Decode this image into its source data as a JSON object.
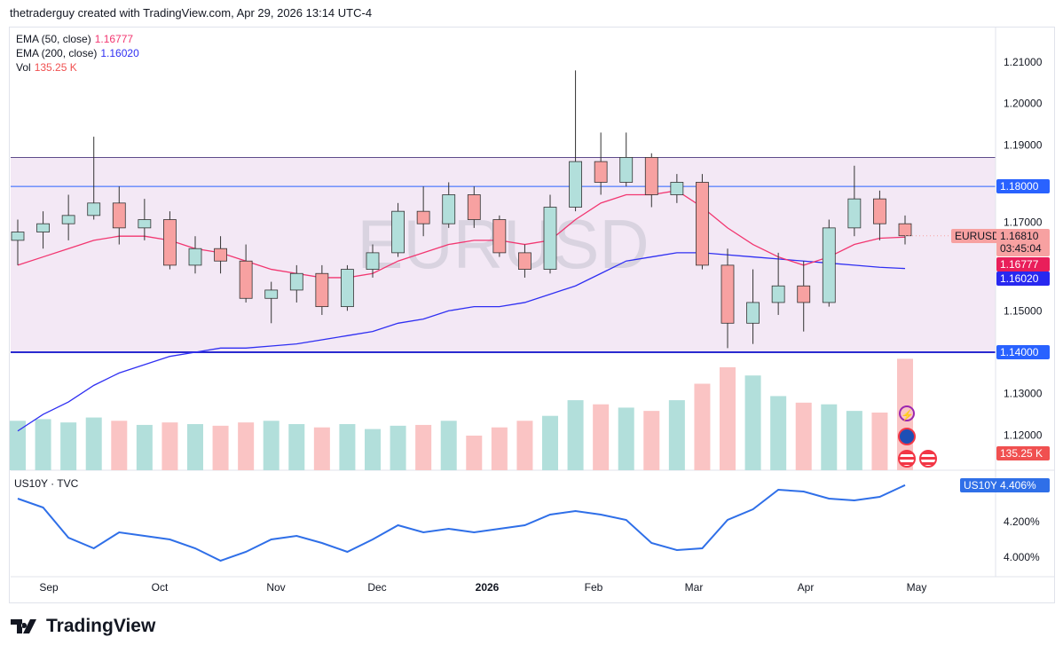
{
  "credit": "thetraderguy created with TradingView.com, Apr 29, 2026 13:14 UTC-4",
  "legend": {
    "ema50": {
      "label": "EMA (50, close)",
      "value": "1.16777",
      "color": "#f23670"
    },
    "ema200": {
      "label": "EMA (200, close)",
      "value": "1.16020",
      "color": "#2f2ff2"
    },
    "vol": {
      "label": "Vol",
      "value": "135.25 K",
      "color": "#f05050"
    }
  },
  "watermark": "EURUSD",
  "price_labels": {
    "symbol": "EURUSD",
    "last": "1.16810",
    "countdown": "03:45:04",
    "ema50": "1.16777",
    "ema200": "1.16020",
    "level_high": "1.18000",
    "level_low": "1.14000",
    "volume": "135.25 K"
  },
  "lower_pane": {
    "title": "US10Y · TVC",
    "symbol": "US10Y",
    "value": "4.406%"
  },
  "logo_text": "TradingView",
  "chart_data": {
    "type": "candlestick",
    "price_ticks": [
      "1.21000",
      "1.20000",
      "1.19000",
      "1.17000",
      "1.15000",
      "1.13000",
      "1.12000"
    ],
    "ylim": [
      1.1185,
      1.2165
    ],
    "x_ticks": [
      "Sep",
      "Oct",
      "Nov",
      "Dec",
      "2026",
      "Feb",
      "Mar",
      "Apr",
      "May"
    ],
    "horizontal_levels": [
      1.187,
      1.18,
      1.14
    ],
    "range_zone": [
      1.14,
      1.187
    ],
    "dates": [
      "2025-08-25",
      "2025-09-01",
      "2025-09-08",
      "2025-09-15",
      "2025-09-22",
      "2025-09-29",
      "2025-10-06",
      "2025-10-13",
      "2025-10-20",
      "2025-10-27",
      "2025-11-03",
      "2025-11-10",
      "2025-11-17",
      "2025-11-24",
      "2025-12-01",
      "2025-12-08",
      "2025-12-15",
      "2025-12-22",
      "2025-12-29",
      "2026-01-05",
      "2026-01-12",
      "2026-01-19",
      "2026-01-26",
      "2026-02-02",
      "2026-02-09",
      "2026-02-16",
      "2026-02-23",
      "2026-03-02",
      "2026-03-09",
      "2026-03-16",
      "2026-03-23",
      "2026-03-30",
      "2026-04-06",
      "2026-04-13",
      "2026-04-20",
      "2026-04-27"
    ],
    "open": [
      1.167,
      1.169,
      1.171,
      1.173,
      1.176,
      1.17,
      1.172,
      1.161,
      1.165,
      1.162,
      1.153,
      1.155,
      1.159,
      1.151,
      1.16,
      1.164,
      1.174,
      1.171,
      1.178,
      1.172,
      1.164,
      1.16,
      1.175,
      1.186,
      1.181,
      1.187,
      1.178,
      1.181,
      1.161,
      1.147,
      1.152,
      1.156,
      1.152,
      1.17,
      1.177,
      1.171
    ],
    "high": [
      1.172,
      1.174,
      1.178,
      1.192,
      1.18,
      1.177,
      1.174,
      1.168,
      1.168,
      1.166,
      1.157,
      1.161,
      1.161,
      1.161,
      1.166,
      1.176,
      1.18,
      1.181,
      1.18,
      1.173,
      1.166,
      1.178,
      1.208,
      1.193,
      1.193,
      1.188,
      1.183,
      1.183,
      1.165,
      1.16,
      1.164,
      1.162,
      1.172,
      1.185,
      1.179,
      1.173
    ],
    "low": [
      1.161,
      1.165,
      1.167,
      1.172,
      1.166,
      1.167,
      1.16,
      1.159,
      1.159,
      1.152,
      1.147,
      1.152,
      1.149,
      1.15,
      1.158,
      1.163,
      1.168,
      1.17,
      1.17,
      1.163,
      1.158,
      1.159,
      1.174,
      1.178,
      1.18,
      1.175,
      1.176,
      1.16,
      1.141,
      1.142,
      1.149,
      1.145,
      1.151,
      1.168,
      1.167,
      1.166
    ],
    "close": [
      1.169,
      1.171,
      1.173,
      1.176,
      1.17,
      1.172,
      1.161,
      1.165,
      1.162,
      1.153,
      1.155,
      1.159,
      1.151,
      1.16,
      1.164,
      1.174,
      1.171,
      1.178,
      1.172,
      1.164,
      1.16,
      1.175,
      1.186,
      1.181,
      1.187,
      1.178,
      1.181,
      1.161,
      1.147,
      1.152,
      1.156,
      1.152,
      1.17,
      1.177,
      1.171,
      1.1681
    ],
    "ema50": [
      1.161,
      1.163,
      1.165,
      1.167,
      1.168,
      1.168,
      1.167,
      1.165,
      1.164,
      1.162,
      1.16,
      1.159,
      1.158,
      1.158,
      1.159,
      1.162,
      1.164,
      1.166,
      1.167,
      1.167,
      1.166,
      1.167,
      1.172,
      1.176,
      1.178,
      1.178,
      1.179,
      1.175,
      1.17,
      1.166,
      1.163,
      1.161,
      1.163,
      1.166,
      1.1675,
      1.16777
    ],
    "ema200": [
      1.121,
      1.125,
      1.128,
      1.132,
      1.135,
      1.137,
      1.139,
      1.14,
      1.141,
      1.141,
      1.1415,
      1.142,
      1.143,
      1.144,
      1.145,
      1.147,
      1.148,
      1.15,
      1.151,
      1.151,
      1.152,
      1.154,
      1.156,
      1.159,
      1.162,
      1.163,
      1.164,
      1.164,
      1.1635,
      1.163,
      1.1625,
      1.162,
      1.1615,
      1.161,
      1.1605,
      1.1602
    ],
    "volume": [
      60,
      62,
      58,
      64,
      60,
      55,
      58,
      56,
      54,
      58,
      60,
      56,
      52,
      56,
      50,
      54,
      55,
      60,
      42,
      52,
      60,
      66,
      85,
      80,
      76,
      72,
      85,
      105,
      125,
      115,
      90,
      82,
      80,
      72,
      70,
      135.25
    ],
    "us10y": {
      "ticks": [
        "4.200%",
        "4.000%"
      ],
      "ylim": [
        3.88,
        4.52
      ],
      "values": [
        4.33,
        4.28,
        4.11,
        4.05,
        4.14,
        4.12,
        4.1,
        4.05,
        3.98,
        4.03,
        4.1,
        4.12,
        4.08,
        4.03,
        4.1,
        4.18,
        4.14,
        4.16,
        4.14,
        4.16,
        4.18,
        4.24,
        4.26,
        4.24,
        4.21,
        4.08,
        4.04,
        4.05,
        4.21,
        4.27,
        4.38,
        4.37,
        4.33,
        4.32,
        4.34,
        4.406
      ]
    }
  }
}
